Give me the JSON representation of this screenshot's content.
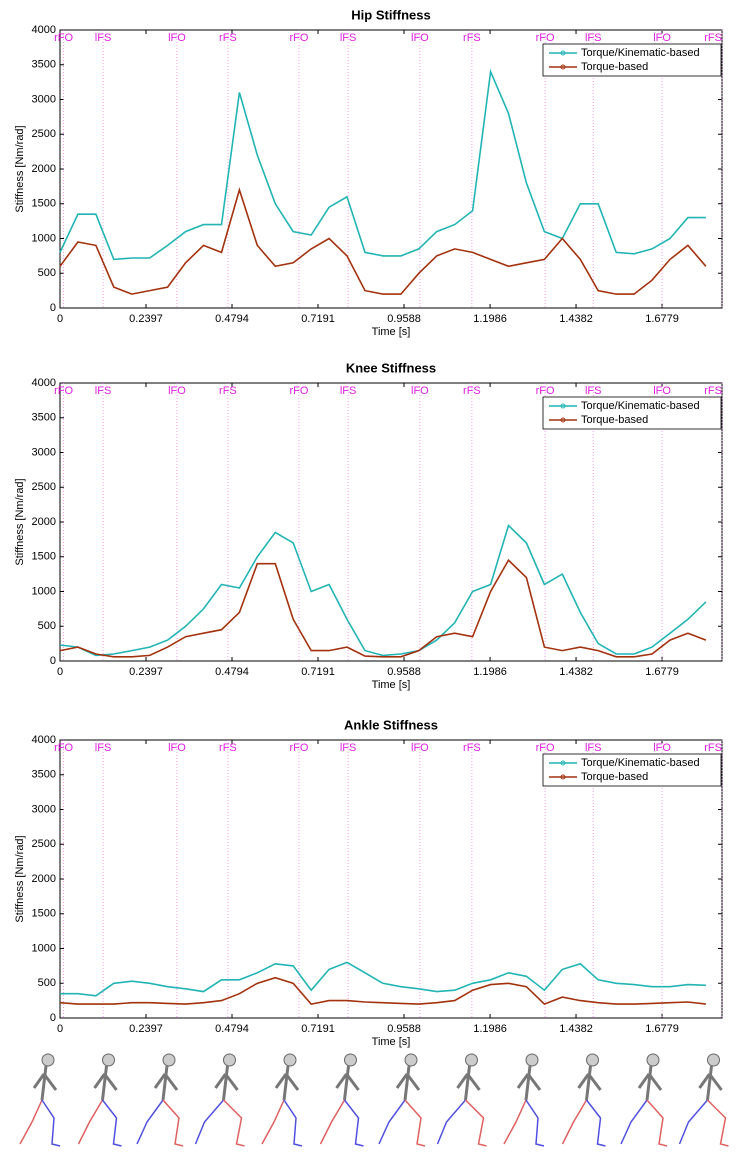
{
  "chart_data": [
    {
      "type": "line",
      "title": "Hip Stiffness",
      "x_label": "Time [s]",
      "y_label": "Stiffness [Nm/rad]",
      "x": [
        0,
        0.05,
        0.1,
        0.15,
        0.2,
        0.25,
        0.3,
        0.35,
        0.4,
        0.45,
        0.5,
        0.55,
        0.6,
        0.65,
        0.7,
        0.75,
        0.8,
        0.85,
        0.9,
        0.95,
        1.0,
        1.05,
        1.1,
        1.15,
        1.2,
        1.25,
        1.3,
        1.35,
        1.4,
        1.45,
        1.5,
        1.55,
        1.6,
        1.65,
        1.7,
        1.75,
        1.8
      ],
      "series": [
        {
          "name": "Torque/Kinematic-based",
          "color": "#22b4b4",
          "values": [
            800,
            1350,
            1350,
            700,
            720,
            720,
            900,
            1100,
            1200,
            1200,
            3100,
            2200,
            1500,
            1100,
            1050,
            1450,
            1600,
            800,
            750,
            750,
            850,
            1100,
            1200,
            1400,
            3400,
            2800,
            1800,
            1100,
            1000,
            1500,
            1500,
            800,
            780,
            850,
            1000,
            1300,
            1300
          ]
        },
        {
          "name": "Torque-based",
          "color": "#a3320e",
          "values": [
            600,
            950,
            900,
            300,
            200,
            250,
            300,
            650,
            900,
            800,
            1700,
            900,
            600,
            650,
            850,
            1000,
            750,
            250,
            200,
            200,
            500,
            750,
            850,
            800,
            700,
            600,
            650,
            700,
            1000,
            700,
            250,
            200,
            200,
            400,
            700,
            900,
            600
          ]
        }
      ],
      "xlim": [
        0,
        1.845
      ],
      "xticks": [
        0,
        0.2397,
        0.4794,
        0.7191,
        0.9588,
        1.1986,
        1.4382,
        1.6779
      ],
      "ylim": [
        0,
        4000
      ],
      "yticks": [
        0,
        500,
        1000,
        1500,
        2000,
        2500,
        3000,
        3500,
        4000
      ],
      "legend": "upper right",
      "events": [
        {
          "label": "rFO",
          "x": 0.01
        },
        {
          "label": "lFS",
          "x": 0.12
        },
        {
          "label": "lFO",
          "x": 0.326
        },
        {
          "label": "rFS",
          "x": 0.468
        },
        {
          "label": "rFO",
          "x": 0.666
        },
        {
          "label": "lFS",
          "x": 0.803
        },
        {
          "label": "lFO",
          "x": 1.003
        },
        {
          "label": "rFS",
          "x": 1.148
        },
        {
          "label": "rFO",
          "x": 1.352
        },
        {
          "label": "lFS",
          "x": 1.486
        },
        {
          "label": "lFO",
          "x": 1.678
        },
        {
          "label": "rFS",
          "x": 1.845
        }
      ]
    },
    {
      "type": "line",
      "title": "Knee Stiffness",
      "x_label": "Time [s]",
      "y_label": "Stiffness [Nm/rad]",
      "x": [
        0,
        0.05,
        0.1,
        0.15,
        0.2,
        0.25,
        0.3,
        0.35,
        0.4,
        0.45,
        0.5,
        0.55,
        0.6,
        0.65,
        0.7,
        0.75,
        0.8,
        0.85,
        0.9,
        0.95,
        1.0,
        1.05,
        1.1,
        1.15,
        1.2,
        1.25,
        1.3,
        1.35,
        1.4,
        1.45,
        1.5,
        1.55,
        1.6,
        1.65,
        1.7,
        1.75,
        1.8
      ],
      "series": [
        {
          "name": "Torque/Kinematic-based",
          "color": "#22b4b4",
          "values": [
            230,
            200,
            80,
            100,
            150,
            200,
            300,
            500,
            750,
            1100,
            1050,
            1500,
            1850,
            1700,
            1000,
            1100,
            600,
            150,
            80,
            100,
            150,
            300,
            550,
            1000,
            1100,
            1950,
            1700,
            1100,
            1250,
            700,
            250,
            100,
            100,
            200,
            400,
            600,
            850
          ]
        },
        {
          "name": "Torque-based",
          "color": "#a3320e",
          "values": [
            150,
            200,
            100,
            60,
            60,
            80,
            200,
            350,
            400,
            450,
            700,
            1400,
            1400,
            600,
            150,
            150,
            200,
            70,
            60,
            60,
            150,
            350,
            400,
            350,
            1000,
            1450,
            1200,
            200,
            150,
            200,
            150,
            60,
            60,
            100,
            300,
            400,
            300
          ]
        }
      ],
      "xlim": [
        0,
        1.845
      ],
      "xticks": [
        0,
        0.2397,
        0.4794,
        0.7191,
        0.9588,
        1.1986,
        1.4382,
        1.6779
      ],
      "ylim": [
        0,
        4000
      ],
      "yticks": [
        0,
        500,
        1000,
        1500,
        2000,
        2500,
        3000,
        3500,
        4000
      ],
      "legend": "upper right",
      "events": [
        {
          "label": "rFO",
          "x": 0.01
        },
        {
          "label": "lFS",
          "x": 0.12
        },
        {
          "label": "lFO",
          "x": 0.326
        },
        {
          "label": "rFS",
          "x": 0.468
        },
        {
          "label": "rFO",
          "x": 0.666
        },
        {
          "label": "lFS",
          "x": 0.803
        },
        {
          "label": "lFO",
          "x": 1.003
        },
        {
          "label": "rFS",
          "x": 1.148
        },
        {
          "label": "rFO",
          "x": 1.352
        },
        {
          "label": "lFS",
          "x": 1.486
        },
        {
          "label": "lFO",
          "x": 1.678
        },
        {
          "label": "rFS",
          "x": 1.845
        }
      ]
    },
    {
      "type": "line",
      "title": "Ankle Stiffness",
      "x_label": "Time [s]",
      "y_label": "Stiffness [Nm/rad]",
      "x": [
        0,
        0.05,
        0.1,
        0.15,
        0.2,
        0.25,
        0.3,
        0.35,
        0.4,
        0.45,
        0.5,
        0.55,
        0.6,
        0.65,
        0.7,
        0.75,
        0.8,
        0.85,
        0.9,
        0.95,
        1.0,
        1.05,
        1.1,
        1.15,
        1.2,
        1.25,
        1.3,
        1.35,
        1.4,
        1.45,
        1.5,
        1.55,
        1.6,
        1.65,
        1.7,
        1.75,
        1.8
      ],
      "series": [
        {
          "name": "Torque/Kinematic-based",
          "color": "#22b4b4",
          "values": [
            350,
            350,
            320,
            500,
            530,
            500,
            450,
            420,
            380,
            550,
            550,
            650,
            780,
            750,
            400,
            700,
            800,
            650,
            500,
            450,
            420,
            380,
            400,
            500,
            550,
            650,
            600,
            400,
            700,
            780,
            550,
            500,
            480,
            450,
            450,
            480,
            470
          ]
        },
        {
          "name": "Torque-based",
          "color": "#a3320e",
          "values": [
            220,
            200,
            200,
            200,
            220,
            220,
            210,
            200,
            220,
            250,
            350,
            500,
            580,
            500,
            200,
            250,
            250,
            230,
            220,
            210,
            200,
            220,
            250,
            400,
            480,
            500,
            450,
            200,
            300,
            250,
            220,
            200,
            200,
            210,
            220,
            230,
            200
          ]
        }
      ],
      "xlim": [
        0,
        1.845
      ],
      "xticks": [
        0,
        0.2397,
        0.4794,
        0.7191,
        0.9588,
        1.1986,
        1.4382,
        1.6779
      ],
      "ylim": [
        0,
        4000
      ],
      "yticks": [
        0,
        500,
        1000,
        1500,
        2000,
        2500,
        3000,
        3500,
        4000
      ],
      "legend": "upper right",
      "events": [
        {
          "label": "rFO",
          "x": 0.01
        },
        {
          "label": "lFS",
          "x": 0.12
        },
        {
          "label": "lFO",
          "x": 0.326
        },
        {
          "label": "rFS",
          "x": 0.468
        },
        {
          "label": "rFO",
          "x": 0.666
        },
        {
          "label": "lFS",
          "x": 0.803
        },
        {
          "label": "lFO",
          "x": 1.003
        },
        {
          "label": "rFS",
          "x": 1.148
        },
        {
          "label": "rFO",
          "x": 1.352
        },
        {
          "label": "lFS",
          "x": 1.486
        },
        {
          "label": "lFO",
          "x": 1.678
        },
        {
          "label": "rFS",
          "x": 1.845
        }
      ]
    }
  ]
}
